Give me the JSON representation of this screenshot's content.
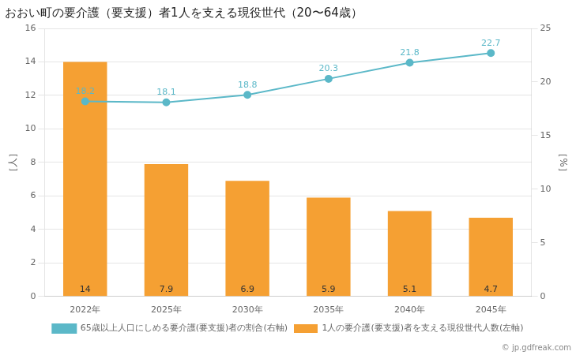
{
  "chart_data": {
    "type": "bar",
    "title": "おおい町の要介護（要支援）者1人を支える現役世代（20〜64歳）",
    "ylabel": "［人］",
    "y2label": "［%］",
    "categories": [
      "2022年",
      "2025年",
      "2030年",
      "2035年",
      "2040年",
      "2045年"
    ],
    "series": [
      {
        "name": "1人の要介護(要支援)者を支える現役世代人数(左軸)",
        "type": "bar",
        "color": "#F5A033",
        "values": [
          14,
          7.9,
          6.9,
          5.9,
          5.1,
          4.7
        ]
      },
      {
        "name": "65歳以上人口にしめる要介護(要支援)者の割合(右軸)",
        "type": "line",
        "color": "#5BB8C8",
        "marker": "circle",
        "axis": "y2",
        "values": [
          18.2,
          18.1,
          18.8,
          20.3,
          21.8,
          22.7
        ]
      }
    ],
    "ylim": [
      0,
      16
    ],
    "yticks": [
      0,
      2,
      4,
      6,
      8,
      10,
      12,
      14,
      16
    ],
    "y2lim": [
      0,
      25.0
    ],
    "y2ticks": [
      0.0,
      5.0,
      10.0,
      15.0,
      20.0,
      25.0
    ],
    "grid": true,
    "legend": "bottom",
    "data_labels": true,
    "annotations": [
      "© jp.gdfreak.com"
    ]
  }
}
